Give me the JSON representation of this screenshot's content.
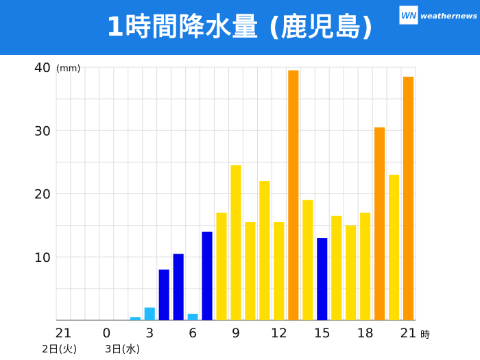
{
  "header": {
    "title": "1時間降水量 (鹿児島)",
    "logo_text": "weathernews",
    "logo_mark": "WN",
    "background_color": "#1a7de3"
  },
  "chart_data": {
    "type": "bar",
    "title": "1時間降水量 (鹿児島)",
    "xlabel": "時",
    "ylabel": "(mm)",
    "ylim": [
      0,
      40
    ],
    "y_ticks": [
      "10",
      "20",
      "30",
      "40"
    ],
    "x_tick_labels": [
      "21",
      "0",
      "3",
      "6",
      "9",
      "12",
      "15",
      "18",
      "21"
    ],
    "date_labels": [
      "2日(火)",
      "3日(水)"
    ],
    "grid": true,
    "categories": [
      "21",
      "22",
      "23",
      "0",
      "1",
      "2",
      "3",
      "4",
      "5",
      "6",
      "7",
      "8",
      "9",
      "10",
      "11",
      "12",
      "13",
      "14",
      "15",
      "16",
      "17",
      "18",
      "19",
      "20",
      "21"
    ],
    "values": [
      0,
      0,
      0,
      0,
      0,
      0.5,
      2,
      8,
      10.5,
      1,
      14,
      17,
      24.5,
      15.5,
      22,
      15.5,
      39.5,
      19,
      13,
      16.5,
      15,
      17,
      30.5,
      23,
      38.5
    ],
    "colors": [
      "#66ccff",
      "#66ccff",
      "#66ccff",
      "#66ccff",
      "#66ccff",
      "#22bbff",
      "#22bbff",
      "#0000ee",
      "#0000ee",
      "#22bbff",
      "#0000ee",
      "#ffdd00",
      "#ffdd00",
      "#ffdd00",
      "#ffdd00",
      "#ffdd00",
      "#ff9900",
      "#ffdd00",
      "#0000ee",
      "#ffdd00",
      "#ffdd00",
      "#ffdd00",
      "#ff9900",
      "#ffdd00",
      "#ff9900"
    ]
  }
}
